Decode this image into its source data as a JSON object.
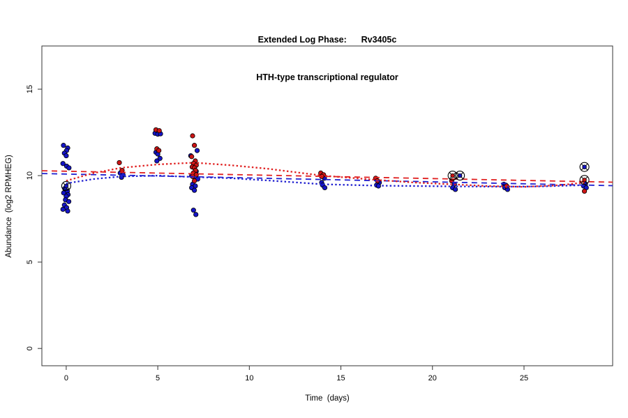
{
  "title": {
    "line1": "Extended Log Phase:      Rv3405c",
    "line2": "HTH-type transcriptional regulator"
  },
  "chart_data": {
    "type": "scatter",
    "title": "Extended Log Phase:      Rv3405c",
    "subtitle": "HTH-type transcriptional regulator",
    "xlabel": "Time  (days)",
    "ylabel": "Abundance  (log2 RPMHEG)",
    "xlim": [
      -1.33,
      29.84
    ],
    "ylim": [
      -1.0,
      17.5
    ],
    "x_ticks": [
      0,
      5,
      10,
      15,
      20,
      25
    ],
    "y_ticks": [
      0,
      5,
      10,
      15
    ],
    "grid": false,
    "legend": "none",
    "colors": {
      "blue": "#1515c8",
      "red": "#cc1414",
      "line_blue": "#2020d0",
      "line_red": "#e02020",
      "marker_edge": "#000000",
      "axis": "#333333"
    },
    "series": [
      {
        "name": "samples-blue",
        "type": "points",
        "color_key": "blue",
        "points": [
          [
            -0.15,
            11.75
          ],
          [
            0.08,
            11.6
          ],
          [
            0.02,
            11.45
          ],
          [
            -0.1,
            11.3
          ],
          [
            0.0,
            11.15
          ],
          [
            -0.18,
            10.7
          ],
          [
            0.02,
            10.55
          ],
          [
            0.15,
            10.45
          ],
          [
            -0.08,
            9.25
          ],
          [
            0.06,
            9.1
          ],
          [
            -0.14,
            9.0
          ],
          [
            0.1,
            8.9
          ],
          [
            0.0,
            8.8
          ],
          [
            -0.04,
            8.6
          ],
          [
            0.14,
            8.5
          ],
          [
            -0.1,
            8.3
          ],
          [
            0.02,
            8.15
          ],
          [
            -0.18,
            8.05
          ],
          [
            0.08,
            7.95
          ],
          [
            2.95,
            10.15
          ],
          [
            3.1,
            10.05
          ],
          [
            3.02,
            9.9
          ],
          [
            4.85,
            12.45
          ],
          [
            5.0,
            12.4
          ],
          [
            5.15,
            12.42
          ],
          [
            4.9,
            11.35
          ],
          [
            5.0,
            11.25
          ],
          [
            5.12,
            11.0
          ],
          [
            4.95,
            10.85
          ],
          [
            7.15,
            11.45
          ],
          [
            6.8,
            11.15
          ],
          [
            7.1,
            10.25
          ],
          [
            6.85,
            10.0
          ],
          [
            7.0,
            9.9
          ],
          [
            7.18,
            9.8
          ],
          [
            6.9,
            9.5
          ],
          [
            7.05,
            9.4
          ],
          [
            6.85,
            9.3
          ],
          [
            7.0,
            9.15
          ],
          [
            6.95,
            8.0
          ],
          [
            7.08,
            7.75
          ],
          [
            14.1,
            9.85
          ],
          [
            13.95,
            9.6
          ],
          [
            14.0,
            9.45
          ],
          [
            14.12,
            9.3
          ],
          [
            17.1,
            9.6
          ],
          [
            16.95,
            9.45
          ],
          [
            17.05,
            9.4
          ],
          [
            21.2,
            9.5
          ],
          [
            21.1,
            9.3
          ],
          [
            21.25,
            9.2
          ],
          [
            23.9,
            9.5
          ],
          [
            24.0,
            9.45
          ],
          [
            23.95,
            9.3
          ],
          [
            24.1,
            9.2
          ],
          [
            28.35,
            9.5
          ],
          [
            28.25,
            9.4
          ],
          [
            28.4,
            9.3
          ]
        ]
      },
      {
        "name": "samples-red",
        "type": "points",
        "color_key": "red",
        "points": [
          [
            2.9,
            10.75
          ],
          [
            3.05,
            10.3
          ],
          [
            4.9,
            12.65
          ],
          [
            5.08,
            12.6
          ],
          [
            4.95,
            11.55
          ],
          [
            5.06,
            11.45
          ],
          [
            6.9,
            12.3
          ],
          [
            7.0,
            11.75
          ],
          [
            6.85,
            11.1
          ],
          [
            7.05,
            10.85
          ],
          [
            6.95,
            10.7
          ],
          [
            7.1,
            10.6
          ],
          [
            6.88,
            10.5
          ],
          [
            7.0,
            10.45
          ],
          [
            7.06,
            10.3
          ],
          [
            6.94,
            10.15
          ],
          [
            7.1,
            10.05
          ],
          [
            6.9,
            9.95
          ],
          [
            7.0,
            9.7
          ],
          [
            13.9,
            10.15
          ],
          [
            14.05,
            10.05
          ],
          [
            13.95,
            9.95
          ],
          [
            16.9,
            9.85
          ],
          [
            17.0,
            9.7
          ],
          [
            21.05,
            9.7
          ],
          [
            24.05,
            9.4
          ],
          [
            28.3,
            9.1
          ]
        ]
      },
      {
        "name": "circled-reference-points",
        "type": "circled_points",
        "points": [
          {
            "x": 0.0,
            "y": 9.4,
            "color_key": "blue"
          },
          {
            "x": 21.1,
            "y": 10.0,
            "color_key": "red"
          },
          {
            "x": 21.5,
            "y": 10.0,
            "color_key": "blue"
          },
          {
            "x": 28.3,
            "y": 10.5,
            "color_key": "blue"
          },
          {
            "x": 28.3,
            "y": 9.75,
            "color_key": "red"
          }
        ]
      }
    ],
    "lines": [
      {
        "name": "linear-trend-red",
        "style": "longdash",
        "color_key": "line_red",
        "points": [
          [
            -1.33,
            10.28
          ],
          [
            29.84,
            9.62
          ]
        ]
      },
      {
        "name": "linear-trend-blue",
        "style": "longdash",
        "color_key": "line_blue",
        "points": [
          [
            -1.33,
            10.12
          ],
          [
            29.84,
            9.42
          ]
        ]
      },
      {
        "name": "loess-trend-red",
        "style": "dotted",
        "color_key": "line_red",
        "points": [
          [
            0,
            9.7
          ],
          [
            1.5,
            10.15
          ],
          [
            3,
            10.45
          ],
          [
            5,
            10.65
          ],
          [
            7,
            10.75
          ],
          [
            9,
            10.6
          ],
          [
            11,
            10.4
          ],
          [
            14,
            10.0
          ],
          [
            17,
            9.75
          ],
          [
            19,
            9.6
          ],
          [
            21,
            9.5
          ],
          [
            23,
            9.4
          ],
          [
            25,
            9.35
          ],
          [
            27,
            9.45
          ],
          [
            28.3,
            9.6
          ]
        ]
      },
      {
        "name": "loess-trend-blue",
        "style": "dotted",
        "color_key": "line_blue",
        "points": [
          [
            0,
            9.55
          ],
          [
            1.5,
            9.8
          ],
          [
            3,
            9.95
          ],
          [
            5,
            10.0
          ],
          [
            7,
            9.92
          ],
          [
            9,
            9.85
          ],
          [
            11,
            9.72
          ],
          [
            14,
            9.5
          ],
          [
            17,
            9.42
          ],
          [
            21,
            9.38
          ],
          [
            24,
            9.36
          ],
          [
            26,
            9.38
          ],
          [
            28.3,
            9.45
          ]
        ]
      }
    ]
  }
}
